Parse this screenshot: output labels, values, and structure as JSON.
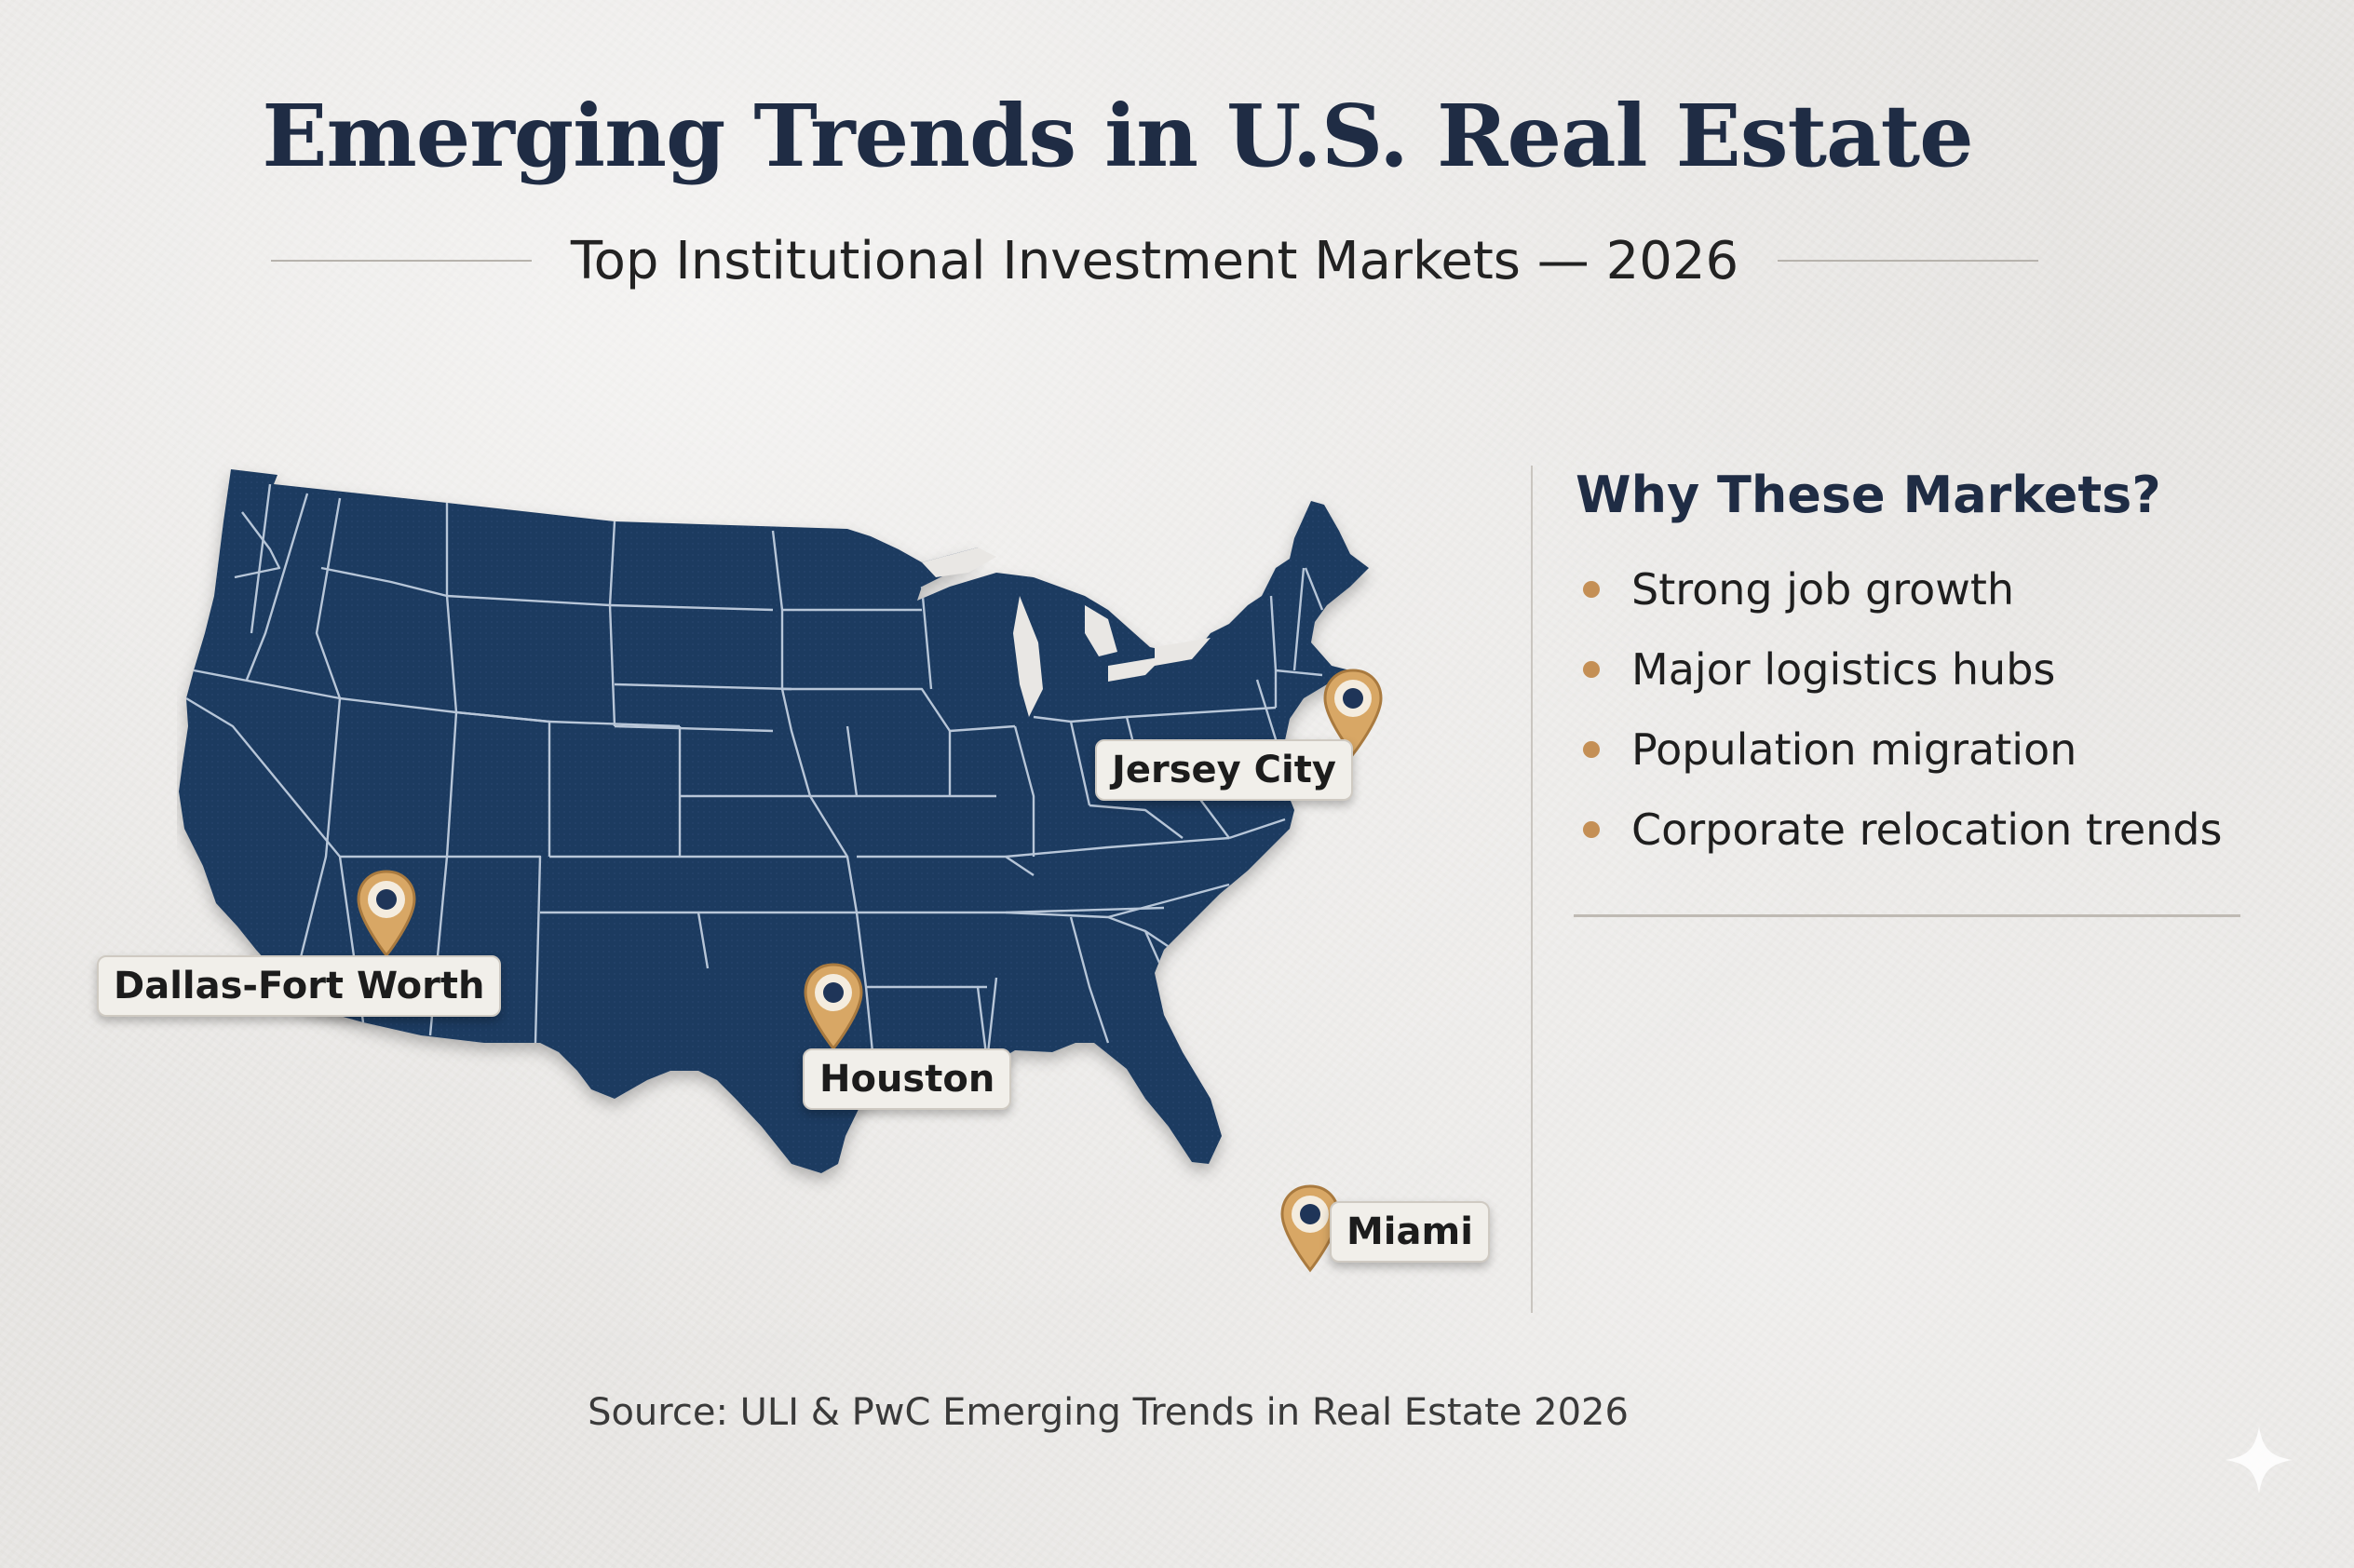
{
  "title": "Emerging Trends in U.S. Real Estate",
  "subtitle": "Top Institutional Investment Markets — 2026",
  "map": {
    "region": "Contiguous United States",
    "land_color": "#1e3a5f",
    "border_color": "#c9d6e6",
    "pin_color": "#c9975a",
    "markers": [
      {
        "label": "Dallas-Fort Worth"
      },
      {
        "label": "Houston"
      },
      {
        "label": "Jersey City"
      },
      {
        "label": "Miami"
      }
    ]
  },
  "sidebar": {
    "title": "Why These Markets?",
    "bullet_color": "#c48f55",
    "items": [
      "Strong job growth",
      "Major logistics hubs",
      "Population migration",
      "Corporate relocation trends"
    ]
  },
  "source": "Source: ULI & PwC Emerging Trends in Real Estate 2026"
}
